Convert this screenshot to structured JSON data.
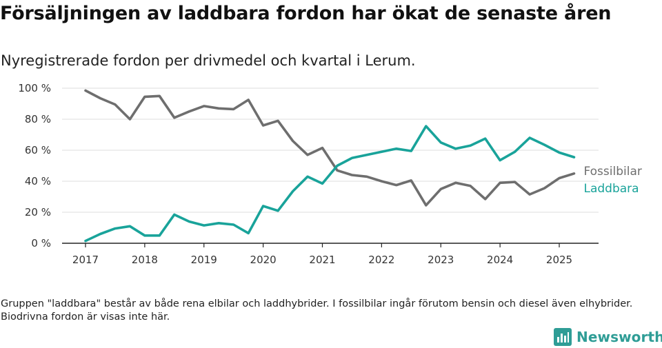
{
  "title": "Försäljningen av laddbara fordon har ökat de senaste åren",
  "subtitle": "Nyregistrerade fordon per drivmedel och kvartal i Lerum.",
  "footnote": "Gruppen \"laddbara\" består av både rena elbilar och laddhybrider. I fossilbilar ingår förutom bensin och diesel även elhybrider. Biodrivna fordon är visas inte här.",
  "brand": {
    "name": "Newsworthy",
    "icon": "bar-chart-logo-icon",
    "color": "#2f9d96"
  },
  "chart_data": {
    "type": "line",
    "xlim": [
      2017,
      2025.25
    ],
    "ylim": [
      0,
      100
    ],
    "x_ticks": [
      2017,
      2018,
      2019,
      2020,
      2021,
      2022,
      2023,
      2024,
      2025
    ],
    "x_tick_labels": [
      "2017",
      "2018",
      "2019",
      "2020",
      "2021",
      "2022",
      "2023",
      "2024",
      "2025"
    ],
    "y_ticks": [
      0,
      20,
      40,
      60,
      80,
      100
    ],
    "y_tick_labels": [
      "0 %",
      "20 %",
      "40 %",
      "60 %",
      "80 %",
      "100 %"
    ],
    "grid": true,
    "legend_placement": "right end of lines",
    "x": [
      2017,
      2017.25,
      2017.5,
      2017.75,
      2018,
      2018.25,
      2018.5,
      2018.75,
      2019,
      2019.25,
      2019.5,
      2019.75,
      2020,
      2020.25,
      2020.5,
      2020.75,
      2021,
      2021.25,
      2021.5,
      2021.75,
      2022,
      2022.25,
      2022.5,
      2022.75,
      2023,
      2023.25,
      2023.5,
      2023.75,
      2024,
      2024.25,
      2024.5,
      2024.75,
      2025,
      2025.25
    ],
    "series": [
      {
        "name": "Fossilbilar",
        "color": "#6e6e6e",
        "values": [
          98.5,
          93.5,
          89.5,
          80,
          94.5,
          95,
          81,
          85,
          88.5,
          87,
          86.5,
          92.5,
          76,
          79,
          66,
          57,
          61.5,
          47,
          44,
          43,
          40,
          37.5,
          40.5,
          24.5,
          35,
          39,
          37,
          28.5,
          39,
          39.5,
          31.5,
          35.5,
          42,
          45
        ]
      },
      {
        "name": "Laddbara",
        "color": "#19a39a",
        "values": [
          1.5,
          6,
          9.5,
          11,
          5,
          5,
          18.5,
          14,
          11.5,
          13,
          12,
          6.5,
          24,
          21,
          33.5,
          43,
          38.5,
          50,
          55,
          57,
          59,
          61,
          59.5,
          75.5,
          65,
          61,
          63,
          67.5,
          53.5,
          59,
          68,
          63.5,
          58.5,
          55.5
        ]
      }
    ]
  }
}
